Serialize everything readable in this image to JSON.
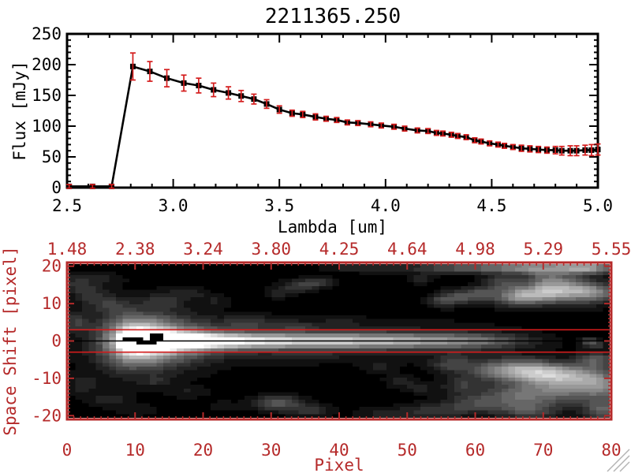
{
  "title": "2211365.250",
  "colors": {
    "black": "#000000",
    "axis_red": "#b52a2a",
    "error_red": "#d41c1c",
    "background": "#ffffff",
    "grip_gray": "#b4b4b4"
  },
  "spectrum_plot": {
    "xlabel": "Lambda [um]",
    "ylabel": "Flux [mJy]",
    "x_tick_labels": [
      "2.5",
      "3.0",
      "3.5",
      "4.0",
      "4.5",
      "5.0"
    ],
    "x_tick_values": [
      2.5,
      3.0,
      3.5,
      4.0,
      4.5,
      5.0
    ],
    "y_tick_labels": [
      "0",
      "50",
      "100",
      "150",
      "200",
      "250"
    ],
    "y_tick_values": [
      0,
      50,
      100,
      150,
      200,
      250
    ],
    "x_minor_step": 0.1,
    "y_minor_step": 10
  },
  "image_plot": {
    "xlabel": "Pixel",
    "ylabel": "Space Shift [pixel]",
    "x_tick_labels": [
      "0",
      "10",
      "20",
      "30",
      "40",
      "50",
      "60",
      "70",
      "80"
    ],
    "x_tick_values": [
      0,
      10,
      20,
      30,
      40,
      50,
      60,
      70,
      80
    ],
    "y_tick_labels": [
      "20",
      "10",
      "0",
      "-10",
      "-20"
    ],
    "y_tick_values": [
      20,
      10,
      0,
      -10,
      -20
    ],
    "top_tick_labels": [
      "1.48",
      "2.38",
      "3.24",
      "3.80",
      "4.25",
      "4.64",
      "4.98",
      "5.29",
      "5.55"
    ],
    "x_minor_step": 1,
    "y_minor_step": 1
  },
  "chart_data": [
    {
      "type": "line",
      "title": "2211365.250",
      "xlabel": "Lambda [um]",
      "ylabel": "Flux [mJy]",
      "xlim": [
        2.5,
        5.0
      ],
      "ylim": [
        0,
        250
      ],
      "marker": "square",
      "legend": "none",
      "grid": false,
      "series": [
        {
          "name": "spectrum",
          "x": [
            2.51,
            2.62,
            2.71,
            2.81,
            2.89,
            2.97,
            3.05,
            3.12,
            3.19,
            3.26,
            3.32,
            3.38,
            3.44,
            3.5,
            3.56,
            3.61,
            3.67,
            3.72,
            3.77,
            3.82,
            3.87,
            3.93,
            3.98,
            4.04,
            4.09,
            4.15,
            4.2,
            4.24,
            4.27,
            4.31,
            4.34,
            4.38,
            4.42,
            4.45,
            4.49,
            4.53,
            4.56,
            4.6,
            4.64,
            4.68,
            4.72,
            4.76,
            4.8,
            4.83,
            4.87,
            4.9,
            4.94,
            4.97,
            5.0
          ],
          "y": [
            2,
            2,
            2,
            197,
            189,
            178,
            170,
            166,
            159,
            154,
            149,
            144,
            136,
            127,
            121,
            119,
            115,
            112,
            110,
            106,
            105,
            103,
            101,
            99,
            96,
            93,
            92,
            89,
            88,
            86,
            84,
            82,
            77,
            75,
            72,
            70,
            68,
            66,
            64,
            63,
            62,
            61,
            61,
            60,
            60,
            60,
            61,
            61,
            62
          ],
          "yerr": [
            3,
            3,
            3,
            22,
            16,
            14,
            13,
            12,
            11,
            10,
            9,
            8,
            7,
            6,
            5,
            5,
            5,
            4,
            4,
            4,
            4,
            4,
            4,
            4,
            4,
            4,
            4,
            4,
            4,
            4,
            4,
            4,
            4,
            4,
            4,
            4,
            4,
            4,
            5,
            5,
            5,
            5,
            6,
            7,
            8,
            8,
            8,
            9,
            9
          ]
        }
      ]
    },
    {
      "type": "heatmap",
      "xlabel": "Pixel",
      "ylabel": "Space Shift [pixel]",
      "xlim": [
        0,
        80
      ],
      "ylim": [
        -21,
        21
      ],
      "top_axis_wavelengths": [
        1.48,
        2.38,
        3.24,
        3.8,
        4.25,
        4.64,
        4.98,
        5.29,
        5.55
      ],
      "aperture_lines_shift": [
        3,
        -3
      ],
      "trace_shift": 0,
      "stripe": {
        "sigma_core": 1.4,
        "sigma_halo": 3.6,
        "halo_frac": 0.22,
        "profile": [
          [
            7,
            0
          ],
          [
            8,
            0.5
          ],
          [
            9,
            0.85
          ],
          [
            10,
            0.97
          ],
          [
            11,
            1.0
          ],
          [
            13,
            1.0
          ],
          [
            15,
            0.93
          ],
          [
            18,
            0.88
          ],
          [
            22,
            0.82
          ],
          [
            26,
            0.78
          ],
          [
            30,
            0.75
          ],
          [
            35,
            0.7
          ],
          [
            40,
            0.68
          ],
          [
            45,
            0.64
          ],
          [
            50,
            0.58
          ],
          [
            54,
            0.52
          ],
          [
            57,
            0.48
          ],
          [
            60,
            0.42
          ],
          [
            62,
            0.36
          ],
          [
            64,
            0.28
          ],
          [
            66,
            0.2
          ],
          [
            68,
            0.14
          ],
          [
            70,
            0.09
          ],
          [
            72,
            0.05
          ],
          [
            74,
            0.02
          ],
          [
            76,
            0
          ],
          [
            80,
            0
          ]
        ]
      },
      "blobs": [
        [
          11,
          0,
          3,
          3.5,
          0.55
        ],
        [
          11,
          0,
          5.5,
          6.5,
          0.28
        ],
        [
          15,
          0,
          4,
          4,
          0.22
        ],
        [
          20,
          0,
          5,
          3,
          0.13
        ],
        [
          8,
          0,
          2.5,
          5,
          0.28
        ],
        [
          1,
          16,
          1.5,
          1.5,
          0.15
        ],
        [
          3,
          13,
          2,
          2,
          0.18
        ],
        [
          6,
          10,
          2,
          1.5,
          0.15
        ],
        [
          1,
          5,
          1.5,
          2,
          0.2
        ],
        [
          5,
          17,
          2,
          1,
          0.12
        ],
        [
          14,
          11,
          2,
          1.5,
          0.16
        ],
        [
          18,
          13,
          2,
          1,
          0.12
        ],
        [
          22,
          11,
          1.5,
          1,
          0.1
        ],
        [
          2,
          -12,
          1.5,
          2,
          0.15
        ],
        [
          6,
          -16,
          2,
          1.5,
          0.13
        ],
        [
          10,
          -19,
          2,
          1,
          0.1
        ],
        [
          13,
          -11,
          1.5,
          1,
          0.12
        ],
        [
          18,
          -14,
          2,
          1,
          0.1
        ],
        [
          23,
          -18,
          1.5,
          1,
          0.1
        ],
        [
          27,
          5,
          3,
          1.2,
          0.16
        ],
        [
          34,
          4,
          2,
          1,
          0.13
        ],
        [
          40,
          5,
          2,
          1,
          0.1
        ],
        [
          35,
          -4,
          3,
          1,
          0.1
        ],
        [
          34,
          15,
          2,
          1.2,
          0.22
        ],
        [
          37,
          16,
          1.5,
          1,
          0.18
        ],
        [
          31,
          13,
          1.5,
          1,
          0.12
        ],
        [
          31,
          -17,
          2.5,
          1.5,
          0.35
        ],
        [
          36,
          -19,
          2,
          1.2,
          0.2
        ],
        [
          46,
          -7,
          1.5,
          1.2,
          0.12
        ],
        [
          49,
          -11,
          1.5,
          1.2,
          0.14
        ],
        [
          52,
          -13,
          1.5,
          1,
          0.12
        ],
        [
          52,
          17,
          1.5,
          1,
          0.12
        ],
        [
          55,
          11,
          1.5,
          1.2,
          0.2
        ],
        [
          58,
          12,
          2,
          1.5,
          0.3
        ],
        [
          61,
          13,
          1.5,
          1.2,
          0.22
        ],
        [
          64,
          16,
          2,
          1.5,
          0.25
        ],
        [
          66,
          12,
          2.5,
          1.8,
          0.4
        ],
        [
          70,
          13,
          3,
          2,
          0.5
        ],
        [
          71,
          17,
          2.5,
          1.5,
          0.3
        ],
        [
          74,
          14,
          3,
          2,
          0.45
        ],
        [
          78,
          13,
          2.5,
          2,
          0.38
        ],
        [
          42,
          20,
          3,
          0.8,
          0.15
        ],
        [
          48,
          20,
          3,
          1,
          0.12
        ],
        [
          55,
          20,
          3,
          1,
          0.22
        ],
        [
          62,
          20,
          4,
          1,
          0.35
        ],
        [
          70,
          20,
          4,
          1.2,
          0.5
        ],
        [
          77,
          20,
          3,
          1.2,
          0.55
        ],
        [
          56,
          -7,
          2,
          1.2,
          0.15
        ],
        [
          57,
          -5,
          2,
          1.5,
          0.15
        ],
        [
          58,
          -12,
          2,
          1.5,
          0.2
        ],
        [
          60,
          -17,
          3,
          2,
          0.25
        ],
        [
          62,
          -8,
          3,
          2,
          0.3
        ],
        [
          66,
          -15,
          3.5,
          2.5,
          0.3
        ],
        [
          67,
          -8,
          3,
          2.2,
          0.5
        ],
        [
          68,
          -19,
          3,
          1.5,
          0.28
        ],
        [
          71,
          -9,
          3,
          2,
          0.45
        ],
        [
          72,
          -14,
          4,
          2.5,
          0.33
        ],
        [
          75,
          -10,
          3,
          2.5,
          0.4
        ],
        [
          78,
          -5,
          2,
          1.5,
          0.3
        ],
        [
          79,
          -12,
          2.5,
          3,
          0.4
        ],
        [
          79,
          -19,
          2,
          2,
          0.35
        ],
        [
          54,
          -19,
          3,
          1.5,
          0.2
        ],
        [
          47,
          -20,
          3,
          1.2,
          0.15
        ],
        [
          77,
          0,
          1,
          0.6,
          0.3
        ],
        [
          78,
          -1,
          1.2,
          0.5,
          0.28
        ]
      ],
      "mask_cells": [
        [
          8,
          0
        ],
        [
          9,
          0
        ],
        [
          10,
          0
        ],
        [
          10,
          -1
        ],
        [
          11,
          -1
        ],
        [
          12,
          -1
        ],
        [
          12,
          0
        ],
        [
          12,
          1
        ],
        [
          13,
          1
        ],
        [
          13,
          0
        ]
      ]
    }
  ],
  "window_chrome": {
    "resize_grip": "diagonal-lines"
  }
}
